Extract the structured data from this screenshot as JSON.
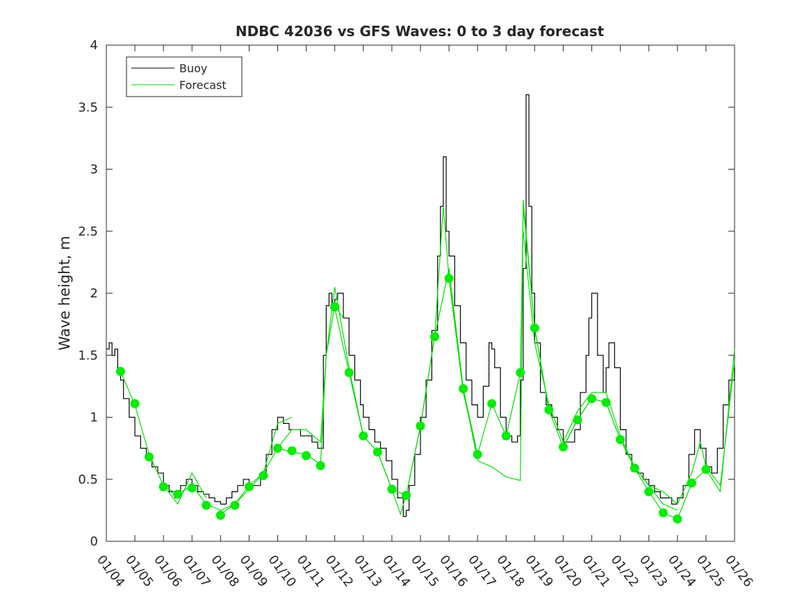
{
  "chart_data": {
    "type": "line",
    "title": "NDBC 42036 vs GFS Waves: 0 to 3 day forecast",
    "xlabel": "",
    "ylabel": "Wave height, m",
    "xlim": [
      4,
      26
    ],
    "ylim": [
      0,
      4
    ],
    "x_ticks": [
      4,
      5,
      6,
      7,
      8,
      9,
      10,
      11,
      12,
      13,
      14,
      15,
      16,
      17,
      18,
      19,
      20,
      21,
      22,
      23,
      24,
      25,
      26
    ],
    "x_tick_labels": [
      "01/04",
      "01/05",
      "01/06",
      "01/07",
      "01/08",
      "01/09",
      "01/10",
      "01/11",
      "01/12",
      "01/13",
      "01/14",
      "01/15",
      "01/16",
      "01/17",
      "01/18",
      "01/19",
      "01/20",
      "01/21",
      "01/22",
      "01/23",
      "01/24",
      "01/25",
      "01/26"
    ],
    "y_ticks": [
      0,
      0.5,
      1,
      1.5,
      2,
      2.5,
      3,
      3.5,
      4
    ],
    "y_tick_labels": [
      "0",
      "0.5",
      "1",
      "1.5",
      "2",
      "2.5",
      "3",
      "3.5",
      "4"
    ],
    "legend": {
      "position": "top-left",
      "entries": [
        {
          "label": "Buoy",
          "color": "#000000"
        },
        {
          "label": "Forecast",
          "color": "#00dd00"
        }
      ]
    },
    "colors": {
      "buoy": "#000000",
      "forecast": "#00dd00",
      "marker": "#00ee00"
    },
    "series": [
      {
        "name": "Buoy",
        "x": [
          4.0,
          4.1,
          4.2,
          4.3,
          4.4,
          4.5,
          4.6,
          4.8,
          5.0,
          5.2,
          5.4,
          5.6,
          5.8,
          6.0,
          6.2,
          6.4,
          6.6,
          6.8,
          7.0,
          7.2,
          7.4,
          7.6,
          7.8,
          8.0,
          8.2,
          8.4,
          8.6,
          8.8,
          9.0,
          9.2,
          9.4,
          9.6,
          9.8,
          10.0,
          10.2,
          10.4,
          10.6,
          10.8,
          11.0,
          11.2,
          11.4,
          11.6,
          11.7,
          11.8,
          11.9,
          12.0,
          12.1,
          12.3,
          12.5,
          12.7,
          12.9,
          13.0,
          13.2,
          13.4,
          13.6,
          13.8,
          14.0,
          14.2,
          14.4,
          14.5,
          14.6,
          14.8,
          15.0,
          15.2,
          15.4,
          15.6,
          15.7,
          15.8,
          15.9,
          16.0,
          16.2,
          16.4,
          16.6,
          16.8,
          17.0,
          17.2,
          17.4,
          17.5,
          17.6,
          17.8,
          18.0,
          18.2,
          18.4,
          18.5,
          18.6,
          18.7,
          18.8,
          18.9,
          19.0,
          19.2,
          19.4,
          19.6,
          19.8,
          20.0,
          20.2,
          20.4,
          20.6,
          20.8,
          20.9,
          21.0,
          21.2,
          21.4,
          21.5,
          21.6,
          21.8,
          22.0,
          22.2,
          22.4,
          22.6,
          22.8,
          23.0,
          23.2,
          23.4,
          23.6,
          23.8,
          24.0,
          24.2,
          24.4,
          24.6,
          24.8,
          25.0,
          25.2,
          25.4,
          25.6,
          25.8,
          26.0
        ],
        "values": [
          1.55,
          1.6,
          1.5,
          1.55,
          1.4,
          1.3,
          1.15,
          1.0,
          0.85,
          0.75,
          0.7,
          0.6,
          0.55,
          0.45,
          0.4,
          0.35,
          0.45,
          0.5,
          0.45,
          0.4,
          0.38,
          0.35,
          0.32,
          0.3,
          0.35,
          0.4,
          0.45,
          0.5,
          0.45,
          0.45,
          0.55,
          0.7,
          0.9,
          1.0,
          0.95,
          0.9,
          0.9,
          0.85,
          0.85,
          0.8,
          0.75,
          1.5,
          1.9,
          2.0,
          1.9,
          1.95,
          2.0,
          1.8,
          1.5,
          1.3,
          1.1,
          1.0,
          0.9,
          0.8,
          0.75,
          0.65,
          0.5,
          0.35,
          0.2,
          0.25,
          0.45,
          0.7,
          1.0,
          1.3,
          1.7,
          2.3,
          2.7,
          3.1,
          2.5,
          2.3,
          1.9,
          1.6,
          1.3,
          1.1,
          1.0,
          1.25,
          1.6,
          1.55,
          1.4,
          1.0,
          0.85,
          0.8,
          0.85,
          1.3,
          2.2,
          3.6,
          2.7,
          2.0,
          1.6,
          1.2,
          1.1,
          1.0,
          0.9,
          0.8,
          0.8,
          0.9,
          1.2,
          1.5,
          1.8,
          2.0,
          1.5,
          1.2,
          1.4,
          1.6,
          1.4,
          0.9,
          0.7,
          0.6,
          0.55,
          0.5,
          0.45,
          0.4,
          0.35,
          0.35,
          0.3,
          0.35,
          0.45,
          0.7,
          0.9,
          0.75,
          0.6,
          0.55,
          0.75,
          1.1,
          1.3,
          1.4
        ]
      },
      {
        "name": "Forecast",
        "runs": [
          {
            "x": [
              4.5,
              5.0,
              5.5,
              6.0,
              6.5,
              6.8,
              7.0,
              7.5
            ],
            "values": [
              1.37,
              1.1,
              0.7,
              0.45,
              0.3,
              0.45,
              0.55,
              0.35
            ]
          },
          {
            "x": [
              6.0,
              6.5,
              7.0,
              7.5,
              8.0,
              8.5,
              9.0,
              9.5,
              10.0,
              10.5
            ],
            "values": [
              0.45,
              0.38,
              0.45,
              0.3,
              0.25,
              0.3,
              0.42,
              0.55,
              0.95,
              1.0
            ]
          },
          {
            "x": [
              8.0,
              8.5,
              9.0,
              9.5,
              10.0,
              10.5,
              11.0,
              11.5,
              11.7,
              12.0,
              12.3
            ],
            "values": [
              0.22,
              0.3,
              0.45,
              0.55,
              0.75,
              0.9,
              0.9,
              0.8,
              1.5,
              1.9,
              1.8
            ]
          },
          {
            "x": [
              10.0,
              10.5,
              11.0,
              11.5,
              11.7,
              12.0,
              12.5,
              13.0,
              13.5,
              14.0,
              14.5
            ],
            "values": [
              0.75,
              0.72,
              0.7,
              0.62,
              1.5,
              2.05,
              1.4,
              0.85,
              0.72,
              0.42,
              0.37
            ]
          },
          {
            "x": [
              12.0,
              12.5,
              13.0,
              13.5,
              14.0,
              14.3,
              14.5,
              15.0,
              15.5,
              16.0,
              16.5,
              17.0
            ],
            "values": [
              1.88,
              1.36,
              0.85,
              0.72,
              0.42,
              0.22,
              0.37,
              0.93,
              1.65,
              2.2,
              1.23,
              0.7
            ]
          },
          {
            "x": [
              14.0,
              14.5,
              15.0,
              15.5,
              15.8,
              16.0,
              16.5,
              17.0,
              17.5,
              18.0,
              18.5,
              18.6,
              19.0,
              19.5
            ],
            "values": [
              0.42,
              0.37,
              0.93,
              1.65,
              2.7,
              2.12,
              1.2,
              0.7,
              1.11,
              0.85,
              1.36,
              2.7,
              1.72,
              1.05
            ]
          },
          {
            "x": [
              16.0,
              16.5,
              17.0,
              17.5,
              18.0,
              18.5,
              18.6,
              19.0,
              19.5,
              20.0,
              20.5,
              21.0,
              21.5,
              22.0
            ],
            "values": [
              2.12,
              1.23,
              0.65,
              0.6,
              0.52,
              0.49,
              2.75,
              1.72,
              1.06,
              0.76,
              0.98,
              1.15,
              1.12,
              0.82
            ]
          },
          {
            "x": [
              18.6,
              19.0,
              19.5,
              20.0,
              20.5,
              21.0,
              21.5,
              22.0,
              22.5,
              23.0,
              23.5,
              24.0
            ],
            "values": [
              2.5,
              1.6,
              1.1,
              0.8,
              1.05,
              1.2,
              1.2,
              0.85,
              0.6,
              0.45,
              0.3,
              0.25
            ]
          },
          {
            "x": [
              20.0,
              20.5,
              21.0,
              21.5,
              22.0,
              22.5,
              23.0,
              23.5,
              24.0,
              24.5,
              25.0,
              25.5,
              26.0
            ],
            "values": [
              0.76,
              0.98,
              1.15,
              1.12,
              0.82,
              0.59,
              0.4,
              0.23,
              0.18,
              0.47,
              0.58,
              0.4,
              1.55
            ]
          },
          {
            "x": [
              22.0,
              22.5,
              23.0,
              23.5,
              24.0,
              24.5,
              24.8,
              25.0,
              25.5,
              26.0
            ],
            "values": [
              0.82,
              0.6,
              0.45,
              0.4,
              0.3,
              0.55,
              0.8,
              0.6,
              0.45,
              1.45
            ]
          }
        ],
        "markers": {
          "x": [
            4.5,
            5.0,
            5.5,
            6.0,
            6.5,
            7.0,
            7.5,
            8.0,
            8.5,
            9.0,
            9.5,
            10.0,
            10.5,
            11.0,
            11.5,
            12.0,
            12.5,
            13.0,
            13.5,
            14.0,
            14.5,
            15.0,
            15.5,
            16.0,
            16.5,
            17.0,
            17.5,
            18.0,
            18.5,
            19.0,
            19.5,
            20.0,
            20.5,
            21.0,
            21.5,
            22.0,
            22.5,
            23.0,
            23.5,
            24.0,
            24.5,
            25.0
          ],
          "values": [
            1.37,
            1.11,
            0.68,
            0.44,
            0.38,
            0.43,
            0.29,
            0.21,
            0.29,
            0.44,
            0.53,
            0.75,
            0.73,
            0.69,
            0.61,
            1.89,
            1.36,
            0.85,
            0.72,
            0.42,
            0.37,
            0.93,
            1.65,
            2.12,
            1.23,
            0.7,
            1.11,
            0.85,
            1.36,
            1.72,
            1.06,
            0.76,
            0.98,
            1.15,
            1.12,
            0.82,
            0.59,
            0.4,
            0.23,
            0.18,
            0.47,
            0.58
          ]
        }
      }
    ]
  }
}
